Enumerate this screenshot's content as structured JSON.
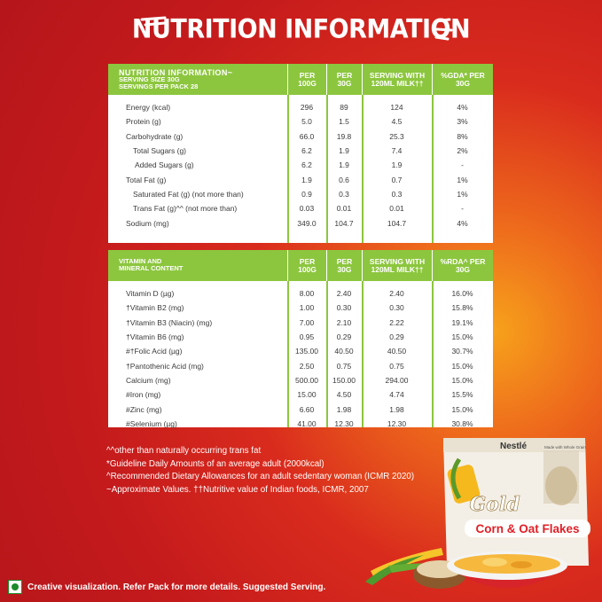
{
  "title": "NUTRITION INFORMATION",
  "nutrition_table": {
    "header": {
      "label_line1": "NUTRITION INFORMATION~",
      "label_line2": "SERVING SIZE 30G",
      "label_line3": "SERVINGS PER PACK 28",
      "col1": "PER 100G",
      "col2": "PER 30G",
      "col3": "SERVING WITH 120ML MILK††",
      "col4": "%GDA* PER 30G"
    },
    "rows": [
      {
        "label": "Energy (kcal)",
        "v1": "296",
        "v2": "89",
        "v3": "124",
        "v4": "4%"
      },
      {
        "label": "Protein (g)",
        "v1": "5.0",
        "v2": "1.5",
        "v3": "4.5",
        "v4": "3%"
      },
      {
        "label": "Carbohydrate (g)",
        "v1": "66.0",
        "v2": "19.8",
        "v3": "25.3",
        "v4": "8%"
      },
      {
        "label": "Total Sugars (g)",
        "v1": "6.2",
        "v2": "1.9",
        "v3": "7.4",
        "v4": "2%"
      },
      {
        "label": "Added Sugars (g)",
        "v1": "6.2",
        "v2": "1.9",
        "v3": "1.9",
        "v4": "-"
      },
      {
        "label": "Total Fat (g)",
        "v1": "1.9",
        "v2": "0.6",
        "v3": "0.7",
        "v4": "1%"
      },
      {
        "label": "Saturated Fat (g) (not more than)",
        "v1": "0.9",
        "v2": "0.3",
        "v3": "0.3",
        "v4": "1%"
      },
      {
        "label": "Trans Fat (g)^^ (not more than)",
        "v1": "0.03",
        "v2": "0.01",
        "v3": "0.01",
        "v4": "-"
      },
      {
        "label": "Sodium (mg)",
        "v1": "349.0",
        "v2": "104.7",
        "v3": "104.7",
        "v4": "4%"
      }
    ]
  },
  "vitamin_table": {
    "header": {
      "label_line1": "VITAMIN AND",
      "label_line2": "MINERAL CONTENT",
      "col1": "PER 100G",
      "col2": "PER 30G",
      "col3": "SERVING WITH 120ML MILK††",
      "col4": "%RDA^ PER 30G"
    },
    "rows": [
      {
        "label": "Vitamin D (µg)",
        "v1": "8.00",
        "v2": "2.40",
        "v3": "2.40",
        "v4": "16.0%"
      },
      {
        "label": "†Vitamin B2 (mg)",
        "v1": "1.00",
        "v2": "0.30",
        "v3": "0.30",
        "v4": "15.8%"
      },
      {
        "label": "†Vitamin B3 (Niacin) (mg)",
        "v1": "7.00",
        "v2": "2.10",
        "v3": "2.22",
        "v4": "19.1%"
      },
      {
        "label": "†Vitamin B6 (mg)",
        "v1": "0.95",
        "v2": "0.29",
        "v3": "0.29",
        "v4": "15.0%"
      },
      {
        "label": "#†Folic Acid (µg)",
        "v1": "135.00",
        "v2": "40.50",
        "v3": "40.50",
        "v4": "30.7%"
      },
      {
        "label": "†Pantothenic Acid (mg)",
        "v1": "2.50",
        "v2": "0.75",
        "v3": "0.75",
        "v4": "15.0%"
      },
      {
        "label": "Calcium (mg)",
        "v1": "500.00",
        "v2": "150.00",
        "v3": "294.00",
        "v4": "15.0%"
      },
      {
        "label": "#Iron (mg)",
        "v1": "15.00",
        "v2": "4.50",
        "v3": "4.74",
        "v4": "15.5%"
      },
      {
        "label": "#Zinc (mg)",
        "v1": "6.60",
        "v2": "1.98",
        "v3": "1.98",
        "v4": "15.0%"
      },
      {
        "label": "#Selenium (µg)",
        "v1": "41.00",
        "v2": "12.30",
        "v3": "12.30",
        "v4": "30.8%"
      }
    ]
  },
  "footnotes": [
    "^^other than naturally occurring trans fat",
    "*Guideline Daily Amounts of an average adult (2000kcal)",
    "^Recommended Dietary Allowances for an adult sedentary woman (ICMR 2020)",
    "~Approximate Values. ††Nutritive value of Indian foods, ICMR, 2007"
  ],
  "bottom_note": "Creative visualization. Refer Pack for more details. Suggested Serving.",
  "product": {
    "brand": "Nestlé",
    "name_logo": "Gold",
    "variant": "Corn & Oat Flakes",
    "tag": "Made with Whole Grain"
  },
  "colors": {
    "green": "#8cc63e",
    "red_bg": "#c41a1c",
    "orange_glow": "#f7a21b"
  }
}
